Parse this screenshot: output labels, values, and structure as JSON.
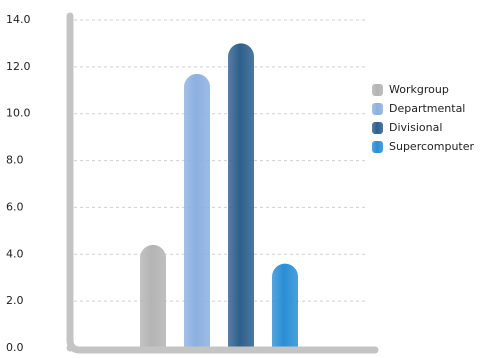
{
  "chart_data": {
    "type": "bar",
    "categories": [
      null
    ],
    "series": [
      {
        "name": "Workgroup",
        "color": "#b4b4b4",
        "values": [
          4.4
        ]
      },
      {
        "name": "Departmental",
        "color": "#8db0e0",
        "values": [
          11.7
        ]
      },
      {
        "name": "Divisional",
        "color": "#2e5f8c",
        "values": [
          13.0
        ]
      },
      {
        "name": "Supercomputer",
        "color": "#2a8ed6",
        "values": [
          3.6
        ]
      }
    ],
    "ylim": [
      0,
      14
    ],
    "yticks": [
      {
        "value": 0,
        "label": "0.0"
      },
      {
        "value": 2,
        "label": "2.0"
      },
      {
        "value": 4,
        "label": "4.0"
      },
      {
        "value": 6,
        "label": "6.0"
      },
      {
        "value": 8,
        "label": "8.0"
      },
      {
        "value": 10,
        "label": "10.0"
      },
      {
        "value": 12,
        "label": "12.0"
      },
      {
        "value": 14,
        "label": "14.0"
      }
    ],
    "grid": true,
    "legend": "right"
  }
}
